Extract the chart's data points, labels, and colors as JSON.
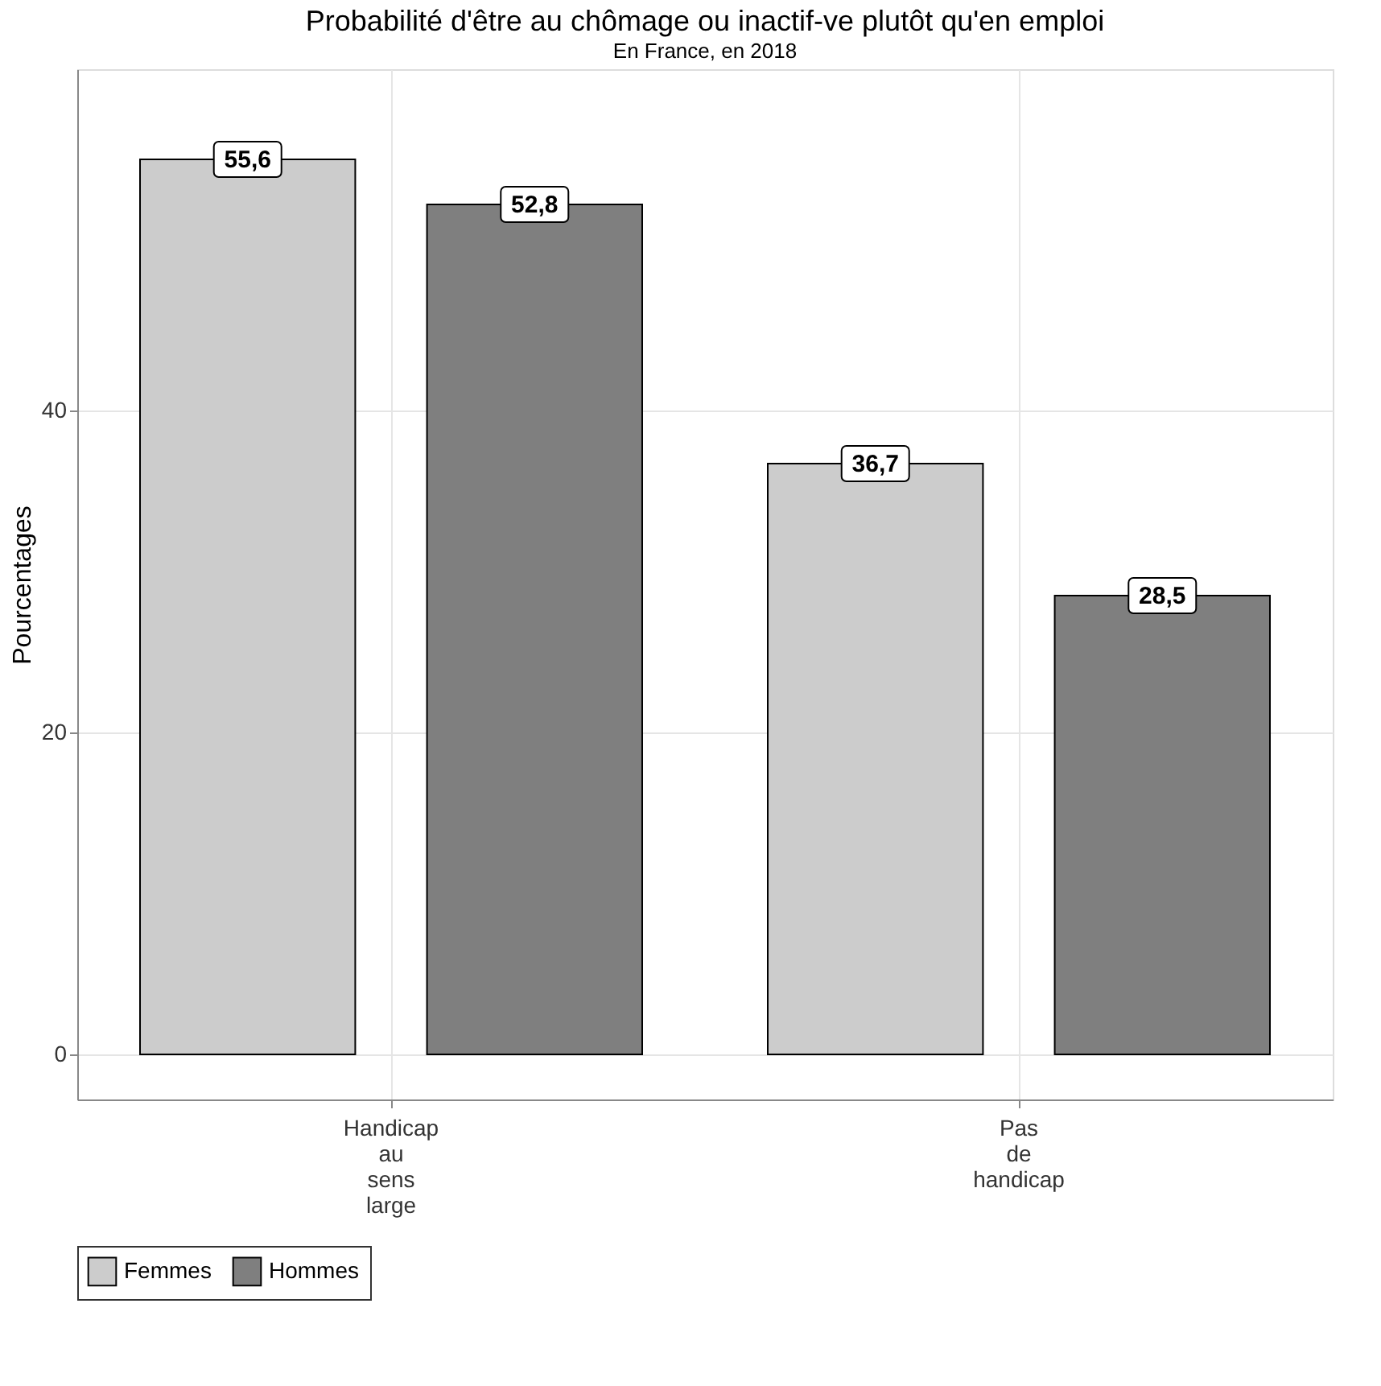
{
  "chart_data": {
    "type": "bar",
    "title": "Probabilité d'être au chômage ou inactif-ve plutôt qu'en emploi",
    "subtitle": "En France, en 2018",
    "ylabel": "Pourcentages",
    "categories": [
      "Handicap au sens large",
      "Pas de handicap"
    ],
    "series": [
      {
        "name": "Femmes",
        "color": "#cccccc",
        "values": [
          55.6,
          36.7
        ],
        "value_labels": [
          "55,6",
          "36,7"
        ]
      },
      {
        "name": "Hommes",
        "color": "#7f7f7f",
        "values": [
          52.8,
          28.5
        ],
        "value_labels": [
          "52,8",
          "28,5"
        ]
      }
    ],
    "ylim": [
      -2.8,
      61.2
    ],
    "yticks": [
      0,
      20,
      40
    ],
    "grid": true,
    "legend": "bottom"
  }
}
